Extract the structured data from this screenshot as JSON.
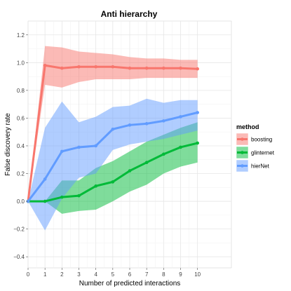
{
  "chart_data": {
    "type": "line",
    "title": "Anti hierarchy",
    "xlabel": "Number of predicted interactions",
    "ylabel": "False discovery rate",
    "xlim": [
      0,
      12
    ],
    "ylim": [
      -0.48,
      1.3
    ],
    "x_ticks": [
      0,
      1,
      2,
      3,
      4,
      5,
      6,
      7,
      8,
      9,
      10
    ],
    "y_ticks": [
      -0.4,
      -0.2,
      0.0,
      0.2,
      0.4,
      0.6,
      0.8,
      1.0,
      1.2
    ],
    "y_tick_labels": [
      "−0.4",
      "−0.2",
      "0.0",
      "0.2",
      "0.4",
      "0.6",
      "0.8",
      "1.0",
      "1.2"
    ],
    "grid": true,
    "legend": {
      "title": "method",
      "position": "right"
    },
    "x": [
      0,
      1,
      2,
      3,
      4,
      5,
      6,
      7,
      8,
      9,
      10
    ],
    "series": [
      {
        "name": "boosting",
        "color": "#F8766D",
        "values": [
          0.0,
          0.98,
          0.96,
          0.97,
          0.97,
          0.97,
          0.96,
          0.96,
          0.96,
          0.96,
          0.955
        ],
        "lower": [
          0.0,
          0.84,
          0.82,
          0.86,
          0.88,
          0.88,
          0.88,
          0.89,
          0.89,
          0.89,
          0.89
        ],
        "upper": [
          0.0,
          1.12,
          1.11,
          1.08,
          1.07,
          1.06,
          1.04,
          1.03,
          1.03,
          1.02,
          1.02
        ]
      },
      {
        "name": "glinternet",
        "color": "#00BA38",
        "values": [
          0.0,
          0.0,
          0.03,
          0.04,
          0.11,
          0.14,
          0.22,
          0.28,
          0.34,
          0.39,
          0.42
        ],
        "lower": [
          0.0,
          0.0,
          -0.09,
          -0.07,
          -0.06,
          0.0,
          0.07,
          0.12,
          0.2,
          0.25,
          0.28
        ],
        "upper": [
          0.0,
          0.0,
          0.15,
          0.15,
          0.24,
          0.29,
          0.36,
          0.43,
          0.48,
          0.53,
          0.57
        ]
      },
      {
        "name": "hierNet",
        "color": "#619CFF",
        "values": [
          0.0,
          0.16,
          0.36,
          0.39,
          0.4,
          0.52,
          0.55,
          0.56,
          0.58,
          0.61,
          0.64
        ],
        "lower": [
          0.0,
          -0.21,
          0.02,
          0.17,
          0.2,
          0.37,
          0.41,
          0.43,
          0.45,
          0.48,
          0.51
        ],
        "upper": [
          0.0,
          0.53,
          0.72,
          0.57,
          0.61,
          0.68,
          0.69,
          0.74,
          0.71,
          0.73,
          0.73
        ]
      }
    ]
  }
}
